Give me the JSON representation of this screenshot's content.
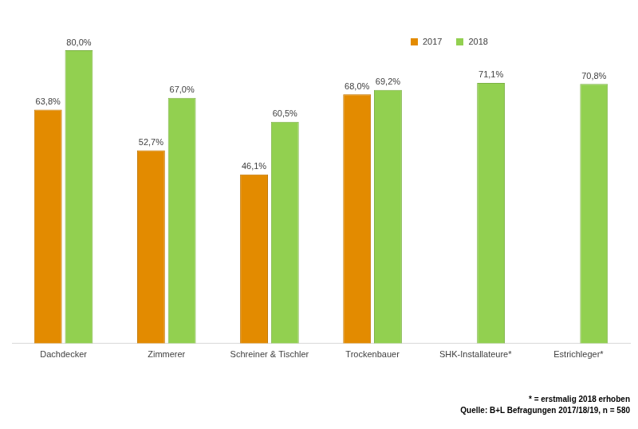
{
  "chart_data": {
    "type": "bar",
    "categories": [
      "Dachdecker",
      "Zimmerer",
      "Schreiner & Tischler",
      "Trockenbauer",
      "SHK-Installateure*",
      "Estrichleger*"
    ],
    "series": [
      {
        "name": "2017",
        "color": "#e38b00",
        "values": [
          63.8,
          52.7,
          46.1,
          68.0,
          null,
          null
        ],
        "value_labels": [
          "63,8%",
          "52,7%",
          "46,1%",
          "68,0%",
          null,
          null
        ]
      },
      {
        "name": "2018",
        "color": "#92d050",
        "values": [
          80.0,
          67.0,
          60.5,
          69.2,
          71.1,
          70.8
        ],
        "value_labels": [
          "80,0%",
          "67,0%",
          "60,5%",
          "69,2%",
          "71,1%",
          "70,8%"
        ]
      }
    ],
    "ylim": [
      0,
      80
    ],
    "grid": false,
    "legend": "upper right",
    "data_labels": true,
    "tick_labels": "x",
    "annotations": [
      "* = erstmalig 2018 erhoben",
      "Quelle: B+L Befragungen 2017/18/19, n = 580"
    ]
  }
}
